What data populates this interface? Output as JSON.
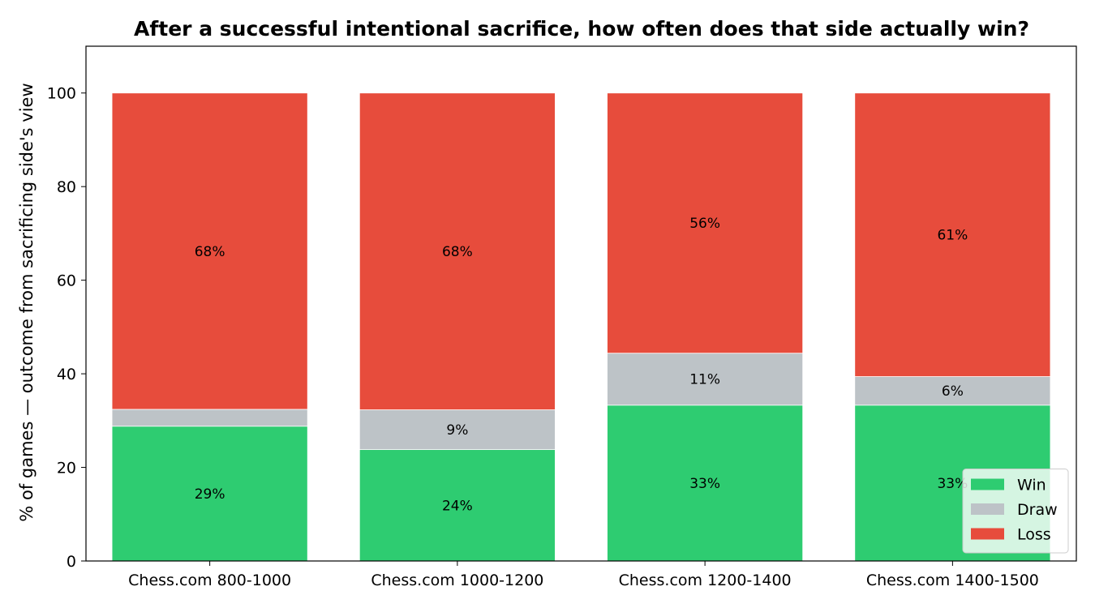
{
  "chart_data": {
    "type": "bar",
    "stacked": true,
    "title": "After a successful intentional sacrifice, how often does that side actually win?",
    "xlabel": "",
    "ylabel": "% of games — outcome from sacrificing side's view",
    "ylim": [
      0,
      110
    ],
    "yticks": [
      0,
      20,
      40,
      60,
      80,
      100
    ],
    "grid": false,
    "legend_position": "bottom-right",
    "categories": [
      "Chess.com 800-1000",
      "Chess.com 1000-1200",
      "Chess.com 1200-1400",
      "Chess.com 1400-1500"
    ],
    "series": [
      {
        "name": "Win",
        "color": "#2ecc71",
        "values": [
          28.8,
          23.8,
          33.3,
          33.3
        ],
        "labels": [
          "29%",
          "24%",
          "33%",
          "33%"
        ]
      },
      {
        "name": "Draw",
        "color": "#bdc3c7",
        "values": [
          3.6,
          8.5,
          11.1,
          6.1
        ],
        "labels": [
          "",
          "9%",
          "11%",
          "6%"
        ]
      },
      {
        "name": "Loss",
        "color": "#e74c3c",
        "values": [
          67.6,
          67.7,
          55.6,
          60.6
        ],
        "labels": [
          "68%",
          "68%",
          "56%",
          "61%"
        ]
      }
    ]
  }
}
